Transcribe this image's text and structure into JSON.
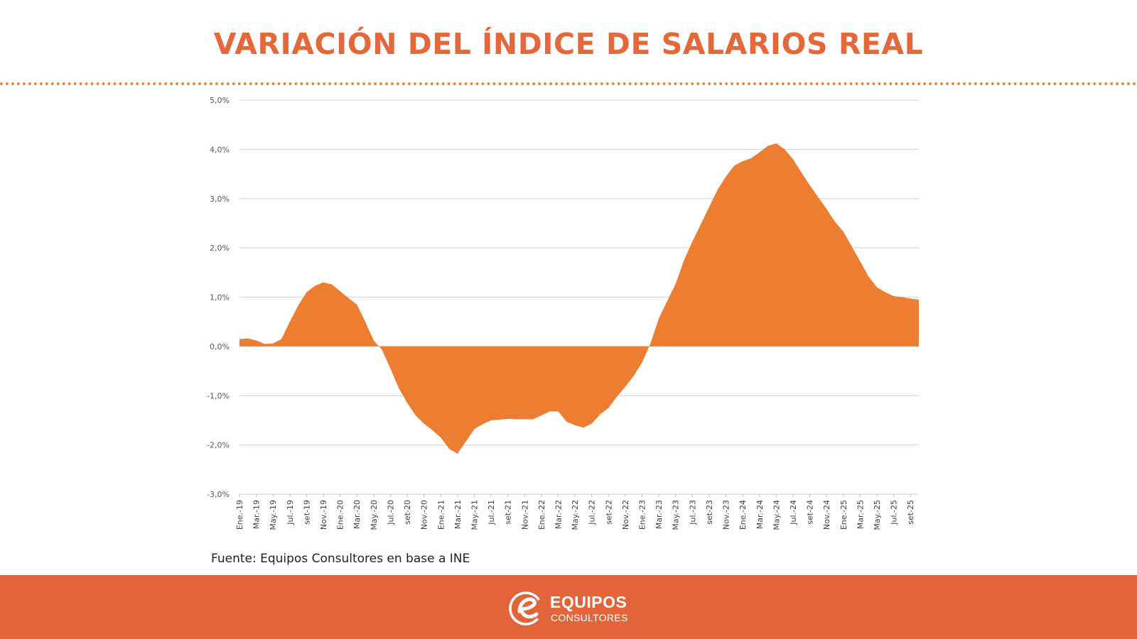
{
  "page": {
    "title": "VARIACIÓN DEL ÍNDICE DE SALARIOS REAL",
    "source": "Fuente: Equipos Consultores en base a INE"
  },
  "logo": {
    "name": "EQUIPOS",
    "subtitle": "CONSULTORES",
    "icon": "e-logo-icon"
  },
  "colors": {
    "title": "#e4683a",
    "area_fill": "#ed7d31",
    "footer": "#e4643a",
    "grid": "#d9d9d9"
  },
  "chart_data": {
    "type": "area",
    "title": "",
    "xlabel": "",
    "ylabel": "",
    "ylim": [
      -3.0,
      5.0
    ],
    "yticks": [
      5.0,
      4.0,
      3.0,
      2.0,
      1.0,
      0.0,
      -1.0,
      -2.0,
      -3.0
    ],
    "ytick_labels": [
      "5,0%",
      "4,0%",
      "3,0%",
      "2,0%",
      "1,0%",
      "0,0%",
      "-1,0%",
      "-2,0%",
      "-3,0%"
    ],
    "grid": true,
    "x_labels": [
      "Ene.-19",
      "Mar.-19",
      "May.-19",
      "Jul.-19",
      "set-19",
      "Nov.-19",
      "Ene.-20",
      "Mar.-20",
      "May.-20",
      "Jul.-20",
      "set-20",
      "Nov.-20",
      "Ene.-21",
      "Mar.-21",
      "May.-21",
      "Jul.-21",
      "set-21",
      "Nov.-21",
      "Ene.-22",
      "Mar.-22",
      "May.-22",
      "Jul.-22",
      "set-22",
      "Nov.-22",
      "Ene.-23",
      "Mar.-23",
      "May.-23",
      "Jul.-23",
      "set-23",
      "Nov.-23",
      "Ene.-24",
      "Mar.-24",
      "May.-24",
      "Jul.-24",
      "set-24",
      "Nov.-24",
      "Ene.-25",
      "Mar.-25",
      "May.-25",
      "Jul.-25",
      "set-25"
    ],
    "series": [
      {
        "name": "Variación del índice de salarios real",
        "x": [
          "Ene.-19",
          "Feb.-19",
          "Mar.-19",
          "Abr.-19",
          "May.-19",
          "Jun.-19",
          "Jul.-19",
          "Ago.-19",
          "set-19",
          "Oct.-19",
          "Nov.-19",
          "Dic.-19",
          "Ene.-20",
          "Feb.-20",
          "Mar.-20",
          "Abr.-20",
          "May.-20",
          "Jun.-20",
          "Jul.-20",
          "Ago.-20",
          "set-20",
          "Oct.-20",
          "Nov.-20",
          "Dic.-20",
          "Ene.-21",
          "Feb.-21",
          "Mar.-21",
          "Abr.-21",
          "May.-21",
          "Jun.-21",
          "Jul.-21",
          "Ago.-21",
          "set-21",
          "Oct.-21",
          "Nov.-21",
          "Dic.-21",
          "Ene.-22",
          "Feb.-22",
          "Mar.-22",
          "Abr.-22",
          "May.-22",
          "Jun.-22",
          "Jul.-22",
          "Ago.-22",
          "set-22",
          "Oct.-22",
          "Nov.-22",
          "Dic.-22",
          "Ene.-23",
          "Feb.-23",
          "Mar.-23",
          "Abr.-23",
          "May.-23",
          "Jun.-23",
          "Jul.-23",
          "Ago.-23",
          "set-23",
          "Oct.-23",
          "Nov.-23",
          "Dic.-23",
          "Ene.-24",
          "Feb.-24",
          "Mar.-24",
          "Abr.-24",
          "May.-24",
          "Jun.-24",
          "Jul.-24",
          "Ago.-24",
          "set-24",
          "Oct.-24",
          "Nov.-24",
          "Dic.-24",
          "Ene.-25",
          "Feb.-25",
          "Mar.-25",
          "Abr.-25",
          "May.-25",
          "Jun.-25",
          "Jul.-25",
          "Ago.-25",
          "set-25",
          "Oct.-25"
        ],
        "values": [
          0.15,
          0.16,
          0.12,
          0.05,
          0.06,
          0.15,
          0.5,
          0.83,
          1.1,
          1.23,
          1.3,
          1.26,
          1.12,
          0.98,
          0.85,
          0.5,
          0.12,
          -0.07,
          -0.45,
          -0.85,
          -1.15,
          -1.4,
          -1.57,
          -1.7,
          -1.85,
          -2.08,
          -2.18,
          -1.93,
          -1.68,
          -1.58,
          -1.5,
          -1.49,
          -1.47,
          -1.48,
          -1.48,
          -1.48,
          -1.4,
          -1.32,
          -1.32,
          -1.53,
          -1.6,
          -1.65,
          -1.57,
          -1.38,
          -1.25,
          -1.02,
          -0.82,
          -0.6,
          -0.33,
          0.06,
          0.57,
          0.92,
          1.27,
          1.75,
          2.13,
          2.48,
          2.83,
          3.18,
          3.45,
          3.67,
          3.76,
          3.82,
          3.94,
          4.07,
          4.12,
          4.0,
          3.8,
          3.53,
          3.27,
          3.03,
          2.79,
          2.53,
          2.33,
          2.03,
          1.73,
          1.42,
          1.2,
          1.1,
          1.02,
          1.0,
          0.97,
          0.95
        ]
      }
    ],
    "legend": "none"
  }
}
